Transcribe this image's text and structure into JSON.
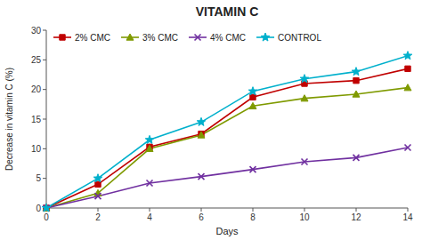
{
  "chart_data": {
    "type": "line",
    "title": "VITAMIN C",
    "xlabel": "Days",
    "ylabel": "Decrease in vitamin C (%)",
    "x": [
      0,
      2,
      4,
      6,
      8,
      10,
      12,
      14
    ],
    "series": [
      {
        "name": "2% CMC",
        "color": "#c00000",
        "marker": "square",
        "values": [
          0,
          4.0,
          10.3,
          12.5,
          18.7,
          21.0,
          21.5,
          23.5
        ]
      },
      {
        "name": "3% CMC",
        "color": "#7f9a00",
        "marker": "triangle",
        "values": [
          0,
          2.5,
          10.0,
          12.3,
          17.2,
          18.5,
          19.2,
          20.3
        ]
      },
      {
        "name": "4% CMC",
        "color": "#7030a0",
        "marker": "x",
        "values": [
          0,
          2.0,
          4.2,
          5.3,
          6.5,
          7.8,
          8.5,
          10.2
        ]
      },
      {
        "name": "CONTROL",
        "color": "#00b0cc",
        "marker": "star",
        "values": [
          0,
          5.0,
          11.5,
          14.5,
          19.7,
          21.8,
          23.0,
          25.7
        ]
      }
    ],
    "xlim": [
      0,
      14
    ],
    "ylim": [
      0,
      30
    ],
    "xticks": [
      0,
      2,
      4,
      6,
      8,
      10,
      12,
      14
    ],
    "yticks": [
      0,
      5,
      10,
      15,
      20,
      25,
      30
    ],
    "grid": false,
    "legend": "upper left"
  }
}
